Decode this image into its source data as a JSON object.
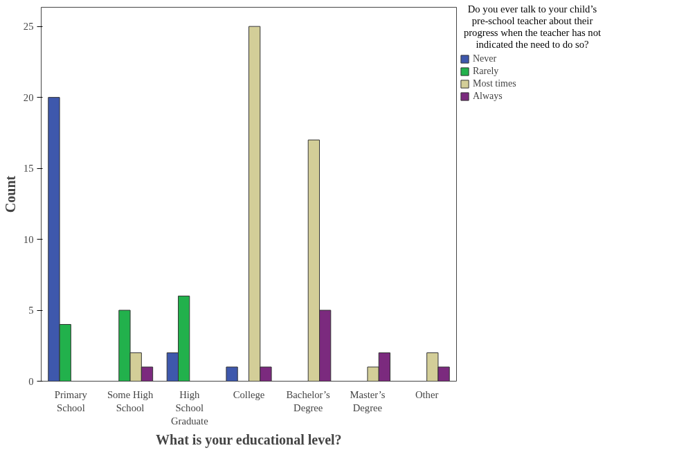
{
  "chart_data": {
    "type": "bar",
    "xlabel": "What is your educational level?",
    "ylabel": "Count",
    "legend_title": "Do you ever talk to your child’s pre-school teacher about their progress when the teacher has not indicated the need to do so?",
    "categories": [
      "Primary School",
      "Some High School",
      "High School Graduate",
      "College",
      "Bachelor’s Degree",
      "Master’s Degree",
      "Other"
    ],
    "series": [
      {
        "name": "Never",
        "color": "#3e58ac",
        "values": [
          20,
          null,
          2,
          1,
          null,
          null,
          null
        ]
      },
      {
        "name": "Rarely",
        "color": "#22b14c",
        "values": [
          4,
          5,
          6,
          null,
          null,
          null,
          null
        ]
      },
      {
        "name": "Most times",
        "color": "#d3ce98",
        "values": [
          null,
          2,
          null,
          25,
          17,
          1,
          2
        ]
      },
      {
        "name": "Always",
        "color": "#7b2a7e",
        "values": [
          null,
          1,
          null,
          1,
          5,
          2,
          1
        ]
      }
    ],
    "ylim": [
      0,
      26.35
    ],
    "yticks": [
      0,
      5,
      10,
      15,
      20,
      25
    ],
    "grid": false,
    "legend": "right"
  }
}
